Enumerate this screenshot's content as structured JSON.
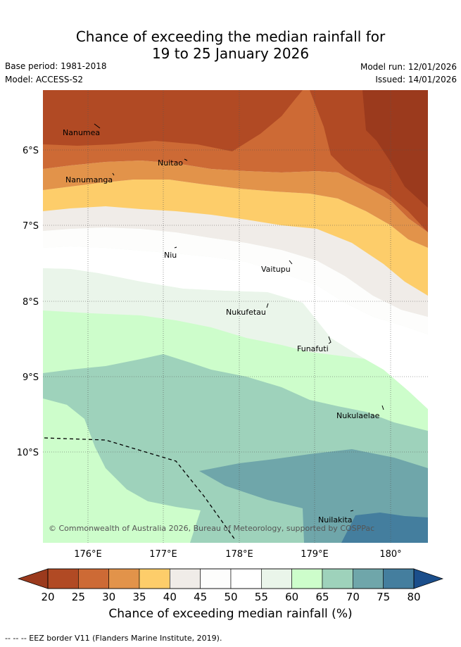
{
  "title_line1": "Chance of exceeding the median rainfall for",
  "title_line2": "19 to 25 January 2026",
  "base_period": "Base period: 1981-2018",
  "model": "Model: ACCESS-S2",
  "model_run": "Model run: 12/01/2026",
  "issued": "Issued: 14/01/2026",
  "map": {
    "lat_ticks": [
      "6°S",
      "7°S",
      "8°S",
      "9°S",
      "10°S"
    ],
    "lon_ticks": [
      "176°E",
      "177°E",
      "178°E",
      "179°E",
      "180°"
    ],
    "islands": [
      "Nanumea",
      "Nuitao",
      "Nanumanga",
      "Niu",
      "Vaitupu",
      "Nukufetau",
      "Funafuti",
      "Nukulaelae",
      "Nuilakita"
    ],
    "copyright": "© Commonwealth of Australia 2026, Bureau of Meteorology, supported by COSPPac"
  },
  "colorbar": {
    "ticks": [
      "20",
      "25",
      "30",
      "35",
      "40",
      "45",
      "50",
      "55",
      "60",
      "65",
      "70",
      "75",
      "80"
    ],
    "colors": [
      "#b14a24",
      "#cd6a35",
      "#e2934a",
      "#fdcd6a",
      "#f0ece8",
      "#fdfdfc",
      "#ffffff",
      "#eaf5ea",
      "#cdfdcb",
      "#9ed2bb",
      "#6fa6aa",
      "#447e9e"
    ],
    "under_color": "#9b3a1d",
    "over_color": "#1b4e8b",
    "label": "Chance of exceeding median rainfall (%)"
  },
  "legend_note": "--  --  -- EEZ border V11 (Flanders Marine Institute, 2019)."
}
